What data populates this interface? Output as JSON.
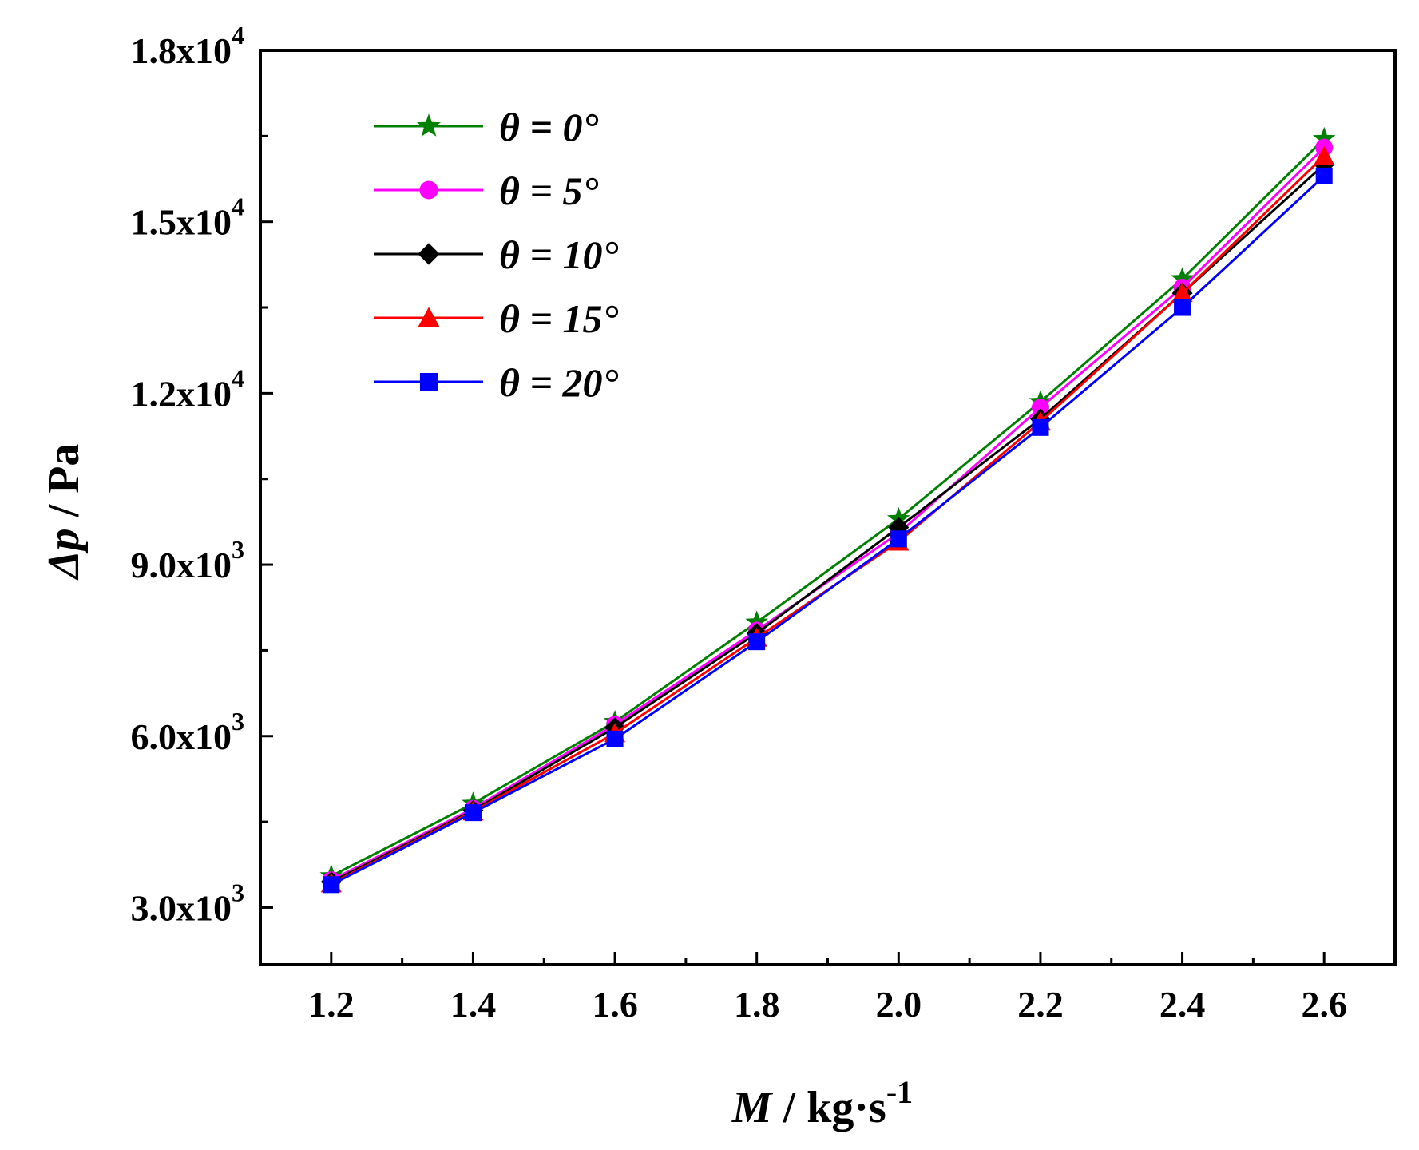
{
  "chart_data": {
    "type": "line",
    "title": "",
    "xlabel": {
      "var": "M",
      "unit": " / kg·s",
      "sup": "-1"
    },
    "ylabel": {
      "var": "Δp",
      "unit": " / Pa"
    },
    "xlim": [
      1.1,
      2.7
    ],
    "ylim": [
      2000,
      18000
    ],
    "x": [
      1.2,
      1.4,
      1.6,
      1.8,
      2.0,
      2.2,
      2.4,
      2.6
    ],
    "x_tick_labels": [
      "1.2",
      "1.4",
      "1.6",
      "1.8",
      "2.0",
      "2.2",
      "2.4",
      "2.6"
    ],
    "y_ticks": [
      {
        "value": 3000,
        "mant": "3.0x10",
        "exp": "3"
      },
      {
        "value": 6000,
        "mant": "6.0x10",
        "exp": "3"
      },
      {
        "value": 9000,
        "mant": "9.0x10",
        "exp": "3"
      },
      {
        "value": 12000,
        "mant": "1.2x10",
        "exp": "4"
      },
      {
        "value": 15000,
        "mant": "1.5x10",
        "exp": "4"
      },
      {
        "value": 18000,
        "mant": "1.8x10",
        "exp": "4"
      }
    ],
    "legend_position": "top-left",
    "grid": false,
    "series": [
      {
        "name": "θ = 0°",
        "var": "θ",
        "rest": " = 0°",
        "color": "#008000",
        "marker": "star",
        "values": [
          3550,
          4820,
          6250,
          7990,
          9800,
          11850,
          14000,
          16450
        ]
      },
      {
        "name": "θ = 5°",
        "var": "θ",
        "rest": " = 5°",
        "color": "#ff00ff",
        "marker": "circle",
        "values": [
          3480,
          4730,
          6200,
          7850,
          9550,
          11750,
          13850,
          16300
        ]
      },
      {
        "name": "θ = 10°",
        "var": "θ",
        "rest": " = 10°",
        "color": "#000000",
        "marker": "diamond",
        "values": [
          3450,
          4700,
          6150,
          7800,
          9650,
          11550,
          13750,
          16000
        ]
      },
      {
        "name": "θ = 15°",
        "var": "θ",
        "rest": " = 15°",
        "color": "#ff0000",
        "marker": "triangle",
        "values": [
          3420,
          4680,
          6050,
          7720,
          9400,
          11500,
          13750,
          16150
        ]
      },
      {
        "name": "θ = 20°",
        "var": "θ",
        "rest": " = 20°",
        "color": "#0000ff",
        "marker": "square",
        "values": [
          3400,
          4660,
          5950,
          7650,
          9450,
          11400,
          13500,
          15800
        ]
      }
    ]
  }
}
